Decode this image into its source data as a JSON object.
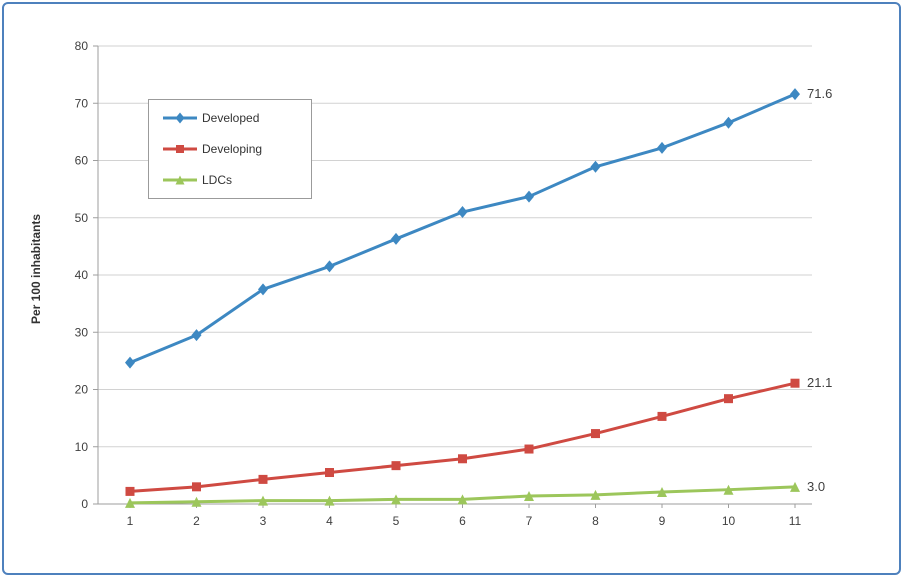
{
  "chart_data": {
    "type": "line",
    "x": [
      1,
      2,
      3,
      4,
      5,
      6,
      7,
      8,
      9,
      10,
      11
    ],
    "series": [
      {
        "name": "Developed",
        "color": "#3d88c2",
        "marker": "diamond",
        "values": [
          24.7,
          29.5,
          37.5,
          41.5,
          46.3,
          51.0,
          53.7,
          58.9,
          62.2,
          66.6,
          71.6
        ],
        "end_label": "71.6"
      },
      {
        "name": "Developing",
        "color": "#cf4a42",
        "marker": "square",
        "values": [
          2.2,
          3.0,
          4.3,
          5.5,
          6.7,
          7.9,
          9.6,
          12.3,
          15.3,
          18.4,
          21.1
        ],
        "end_label": "21.1"
      },
      {
        "name": "LDCs",
        "color": "#9cc65b",
        "marker": "triangle",
        "values": [
          0.2,
          0.4,
          0.6,
          0.6,
          0.8,
          0.8,
          1.4,
          1.6,
          2.1,
          2.5,
          3.0
        ],
        "end_label": "3.0"
      }
    ],
    "title": "",
    "xlabel": "",
    "ylabel": "Per 100 inhabitants",
    "ylim": [
      0,
      80
    ],
    "yticks": [
      0,
      10,
      20,
      30,
      40,
      50,
      60,
      70,
      80
    ],
    "grid": true,
    "legend_position": "upper-left"
  }
}
